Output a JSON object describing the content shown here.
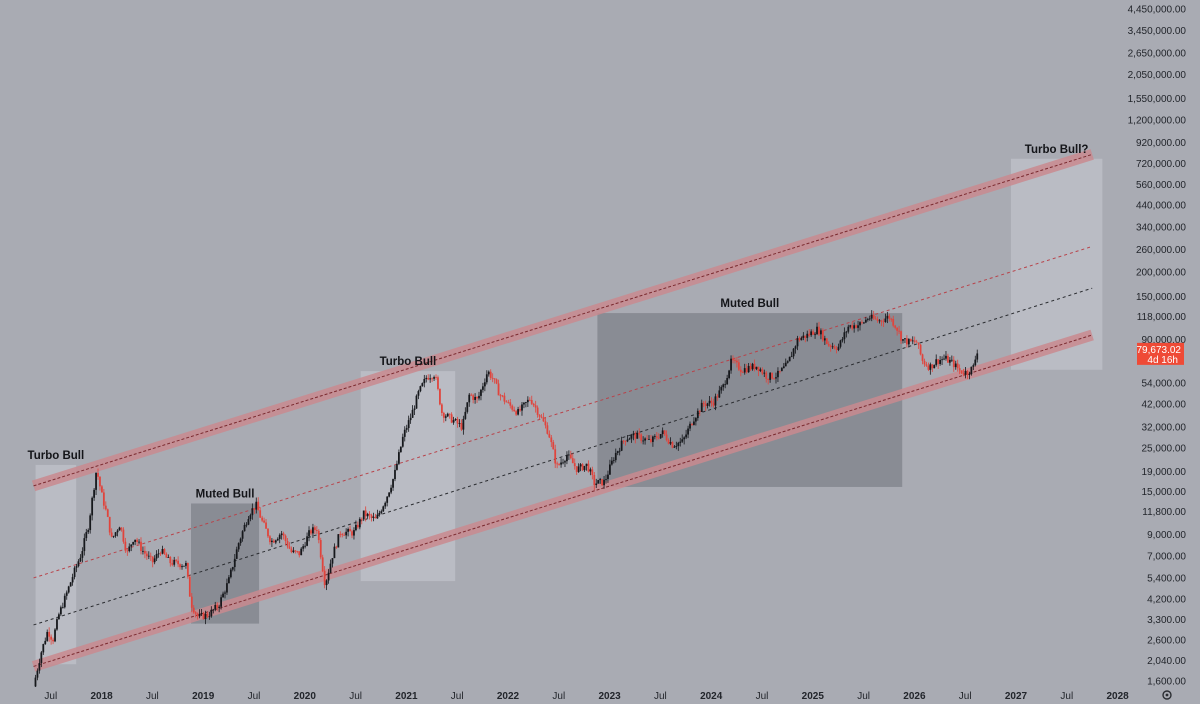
{
  "chart_data": {
    "type": "candlestick",
    "scale": "log",
    "grid": false,
    "colors": {
      "background": "#a9abb3",
      "bull_candle": "#16181c",
      "bear_candle": "#e0443c",
      "channel_band": "#c98a8f",
      "channel_line": "#7a2a2f",
      "midline_red": "#b8434a",
      "midline_black": "#2a2c30",
      "light_zone": "#c9cbd1",
      "dark_zone": "#7d8088",
      "price_badge": "#ef4a36"
    },
    "y_ticks": [
      {
        "value": 1600,
        "label": "1,600.00"
      },
      {
        "value": 2040,
        "label": "2,040.00"
      },
      {
        "value": 2600,
        "label": "2,600.00"
      },
      {
        "value": 3300,
        "label": "3,300.00"
      },
      {
        "value": 4200,
        "label": "4,200.00"
      },
      {
        "value": 5400,
        "label": "5,400.00"
      },
      {
        "value": 7000,
        "label": "7,000.00"
      },
      {
        "value": 9000,
        "label": "9,000.00"
      },
      {
        "value": 11800,
        "label": "11,800.00"
      },
      {
        "value": 15000,
        "label": "15,000.00"
      },
      {
        "value": 19000,
        "label": "19,000.00"
      },
      {
        "value": 25000,
        "label": "25,000.00"
      },
      {
        "value": 32000,
        "label": "32,000.00"
      },
      {
        "value": 42000,
        "label": "42,000.00"
      },
      {
        "value": 54000,
        "label": "54,000.00"
      },
      {
        "value": 90000,
        "label": "90,000.00"
      },
      {
        "value": 118000,
        "label": "118,000.00"
      },
      {
        "value": 150000,
        "label": "150,000.00"
      },
      {
        "value": 200000,
        "label": "200,000.00"
      },
      {
        "value": 260000,
        "label": "260,000.00"
      },
      {
        "value": 340000,
        "label": "340,000.00"
      },
      {
        "value": 440000,
        "label": "440,000.00"
      },
      {
        "value": 560000,
        "label": "560,000.00"
      },
      {
        "value": 720000,
        "label": "720,000.00"
      },
      {
        "value": 920000,
        "label": "920,000.00"
      },
      {
        "value": 1200000,
        "label": "1,200,000.00"
      },
      {
        "value": 1550000,
        "label": "1,550,000.00"
      },
      {
        "value": 2050000,
        "label": "2,050,000.00"
      },
      {
        "value": 2650000,
        "label": "2,650,000.00"
      },
      {
        "value": 3450000,
        "label": "3,450,000.00"
      },
      {
        "value": 4450000,
        "label": "4,450,000.00"
      }
    ],
    "x_ticks": [
      {
        "date": 2017.5,
        "label": "Jul",
        "year": false
      },
      {
        "date": 2018.0,
        "label": "2018",
        "year": true
      },
      {
        "date": 2018.5,
        "label": "Jul",
        "year": false
      },
      {
        "date": 2019.0,
        "label": "2019",
        "year": true
      },
      {
        "date": 2019.5,
        "label": "Jul",
        "year": false
      },
      {
        "date": 2020.0,
        "label": "2020",
        "year": true
      },
      {
        "date": 2020.5,
        "label": "Jul",
        "year": false
      },
      {
        "date": 2021.0,
        "label": "2021",
        "year": true
      },
      {
        "date": 2021.5,
        "label": "Jul",
        "year": false
      },
      {
        "date": 2022.0,
        "label": "2022",
        "year": true
      },
      {
        "date": 2022.5,
        "label": "Jul",
        "year": false
      },
      {
        "date": 2023.0,
        "label": "2023",
        "year": true
      },
      {
        "date": 2023.5,
        "label": "Jul",
        "year": false
      },
      {
        "date": 2024.0,
        "label": "2024",
        "year": true
      },
      {
        "date": 2024.5,
        "label": "Jul",
        "year": false
      },
      {
        "date": 2025.0,
        "label": "2025",
        "year": true
      },
      {
        "date": 2025.5,
        "label": "Jul",
        "year": false
      },
      {
        "date": 2026.0,
        "label": "2026",
        "year": true
      },
      {
        "date": 2026.5,
        "label": "Jul",
        "year": false
      },
      {
        "date": 2027.0,
        "label": "2027",
        "year": true
      },
      {
        "date": 2027.5,
        "label": "Jul",
        "year": false
      },
      {
        "date": 2028.0,
        "label": "2028",
        "year": true
      }
    ],
    "price_path": [
      [
        2017.33,
        1500
      ],
      [
        2017.4,
        2200
      ],
      [
        2017.47,
        2900
      ],
      [
        2017.52,
        2600
      ],
      [
        2017.58,
        3500
      ],
      [
        2017.65,
        4400
      ],
      [
        2017.72,
        5600
      ],
      [
        2017.8,
        7200
      ],
      [
        2017.87,
        10000
      ],
      [
        2017.95,
        19500
      ],
      [
        2018.0,
        14500
      ],
      [
        2018.05,
        11500
      ],
      [
        2018.1,
        8500
      ],
      [
        2018.18,
        10200
      ],
      [
        2018.25,
        7200
      ],
      [
        2018.32,
        8800
      ],
      [
        2018.4,
        7500
      ],
      [
        2018.5,
        6500
      ],
      [
        2018.58,
        7500
      ],
      [
        2018.67,
        6500
      ],
      [
        2018.75,
        6400
      ],
      [
        2018.83,
        6300
      ],
      [
        2018.88,
        4000
      ],
      [
        2018.95,
        3400
      ],
      [
        2019.05,
        3500
      ],
      [
        2019.15,
        3900
      ],
      [
        2019.25,
        5200
      ],
      [
        2019.35,
        8200
      ],
      [
        2019.45,
        11500
      ],
      [
        2019.52,
        12800
      ],
      [
        2019.58,
        10500
      ],
      [
        2019.67,
        8300
      ],
      [
        2019.77,
        9200
      ],
      [
        2019.87,
        7300
      ],
      [
        2019.95,
        7200
      ],
      [
        2020.05,
        9300
      ],
      [
        2020.12,
        9700
      ],
      [
        2020.2,
        5000
      ],
      [
        2020.27,
        7000
      ],
      [
        2020.35,
        9300
      ],
      [
        2020.48,
        9200
      ],
      [
        2020.58,
        11500
      ],
      [
        2020.7,
        10700
      ],
      [
        2020.8,
        13800
      ],
      [
        2020.88,
        18000
      ],
      [
        2020.97,
        29000
      ],
      [
        2021.05,
        37000
      ],
      [
        2021.12,
        48000
      ],
      [
        2021.2,
        58000
      ],
      [
        2021.28,
        60000
      ],
      [
        2021.35,
        38000
      ],
      [
        2021.45,
        35000
      ],
      [
        2021.55,
        32000
      ],
      [
        2021.62,
        47000
      ],
      [
        2021.7,
        44000
      ],
      [
        2021.8,
        62000
      ],
      [
        2021.85,
        57000
      ],
      [
        2021.92,
        47000
      ],
      [
        2022.0,
        42000
      ],
      [
        2022.1,
        38000
      ],
      [
        2022.22,
        45000
      ],
      [
        2022.3,
        38000
      ],
      [
        2022.4,
        30000
      ],
      [
        2022.48,
        20000
      ],
      [
        2022.58,
        23000
      ],
      [
        2022.68,
        19500
      ],
      [
        2022.78,
        20500
      ],
      [
        2022.85,
        16500
      ],
      [
        2022.95,
        16800
      ],
      [
        2023.05,
        23000
      ],
      [
        2023.15,
        28000
      ],
      [
        2023.25,
        29000
      ],
      [
        2023.4,
        27000
      ],
      [
        2023.52,
        30000
      ],
      [
        2023.62,
        26000
      ],
      [
        2023.72,
        27000
      ],
      [
        2023.82,
        35000
      ],
      [
        2023.92,
        42000
      ],
      [
        2024.02,
        43000
      ],
      [
        2024.12,
        52000
      ],
      [
        2024.2,
        70000
      ],
      [
        2024.3,
        63000
      ],
      [
        2024.45,
        66000
      ],
      [
        2024.55,
        58000
      ],
      [
        2024.65,
        59000
      ],
      [
        2024.75,
        67000
      ],
      [
        2024.85,
        90000
      ],
      [
        2024.95,
        95000
      ],
      [
        2025.05,
        102000
      ],
      [
        2025.15,
        85000
      ],
      [
        2025.25,
        82000
      ],
      [
        2025.35,
        105000
      ],
      [
        2025.48,
        108000
      ],
      [
        2025.55,
        117000
      ],
      [
        2025.65,
        112000
      ],
      [
        2025.75,
        118000
      ],
      [
        2025.82,
        105000
      ],
      [
        2025.88,
        90000
      ],
      [
        2025.95,
        87000
      ],
      [
        2026.02,
        88000
      ],
      [
        2026.08,
        70000
      ],
      [
        2026.15,
        65000
      ],
      [
        2026.22,
        70000
      ],
      [
        2026.3,
        72000
      ],
      [
        2026.38,
        68000
      ],
      [
        2026.45,
        62000
      ],
      [
        2026.52,
        61000
      ],
      [
        2026.58,
        65000
      ],
      [
        2026.62,
        79673
      ]
    ],
    "channel": {
      "lower": [
        [
          2017.33,
          1900
        ],
        [
          2027.75,
          95000
        ]
      ],
      "upper": [
        [
          2017.33,
          16000
        ],
        [
          2027.75,
          800000
        ]
      ],
      "mid_red": [
        [
          2017.33,
          5400
        ],
        [
          2027.75,
          270000
        ]
      ],
      "mid_black": [
        [
          2017.33,
          3100
        ],
        [
          2027.75,
          165000
        ]
      ]
    },
    "zones": [
      {
        "label": "Turbo Bull",
        "start": 2017.35,
        "end": 2017.75,
        "low": 1950,
        "high": 20500,
        "style": "light"
      },
      {
        "label": "Muted Bull",
        "start": 2018.88,
        "end": 2019.55,
        "low": 3150,
        "high": 13000,
        "style": "dark"
      },
      {
        "label": "Turbo Bull",
        "start": 2020.55,
        "end": 2021.48,
        "low": 5200,
        "high": 62000,
        "style": "light"
      },
      {
        "label": "Muted Bull",
        "start": 2022.88,
        "end": 2025.88,
        "low": 15800,
        "high": 123000,
        "style": "dark"
      },
      {
        "label": "Turbo Bull?",
        "start": 2026.95,
        "end": 2027.85,
        "low": 63000,
        "high": 760000,
        "style": "light"
      }
    ],
    "current_price": {
      "value": 79673.02,
      "label": "79,673.02",
      "countdown": "4d 16h"
    },
    "footer_icon": "settings-icon"
  }
}
